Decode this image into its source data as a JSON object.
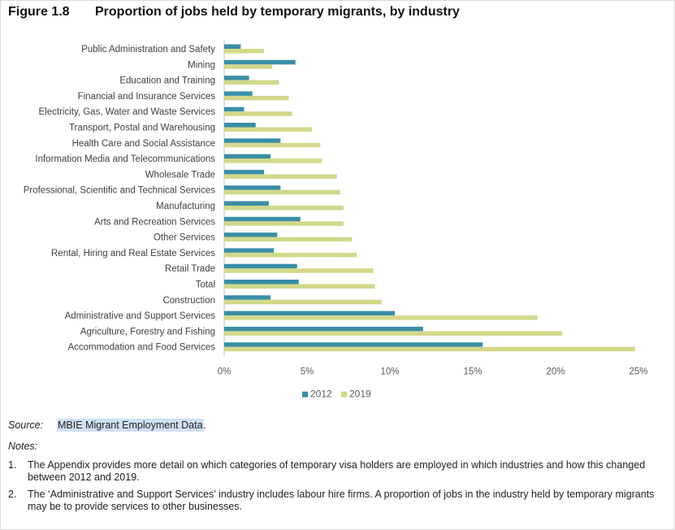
{
  "figure": {
    "number": "Figure 1.8",
    "title": "Proportion of jobs held by temporary migrants, by industry"
  },
  "chart_data": {
    "type": "bar",
    "orientation": "horizontal",
    "categories": [
      "Public Administration and Safety",
      "Mining",
      "Education and Training",
      "Financial and Insurance Services",
      "Electricity, Gas, Water and Waste Services",
      "Transport, Postal and Warehousing",
      "Health Care and Social Assistance",
      "Information Media and Telecommunications",
      "Wholesale Trade",
      "Professional, Scientific and Technical Services",
      "Manufacturing",
      "Arts and Recreation Services",
      "Other Services",
      "Rental, Hiring and Real Estate Services",
      "Retail Trade",
      "Total",
      "Construction",
      "Administrative and Support Services",
      "Agriculture, Forestry and Fishing",
      "Accommodation and Food Services"
    ],
    "series": [
      {
        "name": "2012",
        "color": "#3a8ea6",
        "values": [
          1.0,
          4.3,
          1.5,
          1.7,
          1.2,
          1.9,
          3.4,
          2.8,
          2.4,
          3.4,
          2.7,
          4.6,
          3.2,
          3.0,
          4.4,
          4.5,
          2.8,
          10.3,
          12.0,
          15.6
        ]
      },
      {
        "name": "2019",
        "color": "#d2d88a",
        "values": [
          2.4,
          2.9,
          3.3,
          3.9,
          4.1,
          5.3,
          5.8,
          5.9,
          6.8,
          7.0,
          7.2,
          7.2,
          7.7,
          8.0,
          9.0,
          9.1,
          9.5,
          18.9,
          20.4,
          24.8
        ]
      }
    ],
    "xlim": [
      0,
      25
    ],
    "xticks": [
      "0%",
      "5%",
      "10%",
      "15%",
      "20%",
      "25%"
    ],
    "grid": false,
    "legend": "bottom"
  },
  "source": {
    "label": "Source:",
    "text": "MBIE Migrant Employment Data",
    "suffix": "."
  },
  "notes": {
    "heading": "Notes:",
    "items": [
      {
        "num": "1.",
        "text": "The Appendix provides more detail on which categories of temporary visa holders are employed in which industries and how this changed between 2012 and 2019."
      },
      {
        "num": "2.",
        "text": "The ‘Administrative and Support Services’ industry includes labour hire firms. A proportion of jobs in the industry held by temporary migrants may be to provide services to other businesses."
      }
    ]
  }
}
